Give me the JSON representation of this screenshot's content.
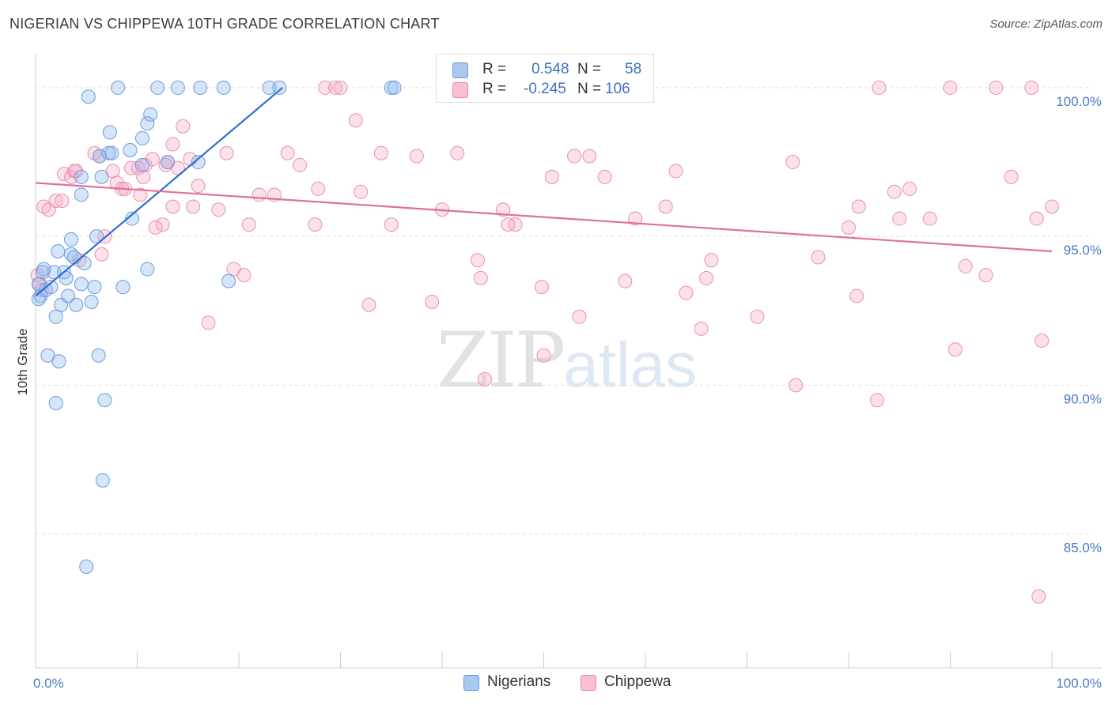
{
  "title": "NIGERIAN VS CHIPPEWA 10TH GRADE CORRELATION CHART",
  "source": "Source: ZipAtlas.com",
  "watermark": {
    "zip": "ZIP",
    "atlas": "atlas"
  },
  "legend_stats": [
    {
      "series": "Nigerians",
      "r_label": "R =",
      "r_value": "0.548",
      "n_label": "N =",
      "n_value": "58",
      "color": "#a8c8f0",
      "border": "#6a9be0"
    },
    {
      "series": "Chippewa",
      "r_label": "R =",
      "r_value": "-0.245",
      "n_label": "N =",
      "n_value": "106",
      "color": "#f8bfd0",
      "border": "#e88aa8"
    }
  ],
  "colors": {
    "nigerians_fill": "rgba(140,180,235,0.35)",
    "nigerians_stroke": "#6a9be0",
    "nigerians_line": "#2f6fd0",
    "chippewa_fill": "rgba(245,170,195,0.35)",
    "chippewa_stroke": "#e890ae",
    "chippewa_line": "#e0709a",
    "grid": "#dddddd",
    "tick_text": "#4a7bc8"
  },
  "chart_data": {
    "type": "scatter",
    "title": "NIGERIAN VS CHIPPEWA 10TH GRADE CORRELATION CHART",
    "xlabel": "",
    "ylabel": "10th Grade",
    "xlim": [
      0,
      100
    ],
    "ylim": [
      80.5,
      101.3
    ],
    "x_tick_labels": {
      "left": "0.0%",
      "right": "100.0%"
    },
    "y_ticks": [
      {
        "value": 100,
        "label": "100.0%"
      },
      {
        "value": 95,
        "label": "95.0%"
      },
      {
        "value": 90,
        "label": "90.0%"
      },
      {
        "value": 85,
        "label": "85.0%"
      }
    ],
    "grid": true,
    "legend": [
      "Nigerians",
      "Chippewa"
    ],
    "series": [
      {
        "name": "Nigerians",
        "trend": {
          "x": [
            0,
            24.3
          ],
          "y": [
            93.0,
            100.0
          ]
        },
        "points": [
          [
            0.3,
            93.4
          ],
          [
            0.5,
            93.0
          ],
          [
            0.7,
            93.8
          ],
          [
            0.3,
            92.9
          ],
          [
            1.0,
            93.2
          ],
          [
            1.5,
            93.3
          ],
          [
            1.2,
            91.0
          ],
          [
            2.0,
            92.3
          ],
          [
            2.5,
            92.7
          ],
          [
            3.0,
            93.6
          ],
          [
            3.2,
            93.0
          ],
          [
            4.0,
            92.7
          ],
          [
            4.5,
            93.4
          ],
          [
            5.5,
            92.8
          ],
          [
            5.8,
            93.3
          ],
          [
            4.8,
            94.1
          ],
          [
            3.5,
            94.4
          ],
          [
            2.2,
            94.5
          ],
          [
            3.5,
            94.9
          ],
          [
            6.0,
            95.0
          ],
          [
            1.8,
            93.8
          ],
          [
            2.8,
            93.8
          ],
          [
            3.8,
            94.3
          ],
          [
            2.3,
            90.8
          ],
          [
            2.0,
            89.4
          ],
          [
            6.2,
            91.0
          ],
          [
            6.8,
            89.5
          ],
          [
            6.6,
            86.8
          ],
          [
            5.0,
            83.9
          ],
          [
            4.5,
            97.0
          ],
          [
            6.5,
            97.0
          ],
          [
            4.5,
            96.4
          ],
          [
            6.3,
            97.7
          ],
          [
            7.2,
            97.8
          ],
          [
            7.5,
            97.8
          ],
          [
            7.3,
            98.5
          ],
          [
            9.3,
            97.9
          ],
          [
            10.5,
            97.4
          ],
          [
            9.5,
            95.6
          ],
          [
            13.0,
            97.5
          ],
          [
            16.0,
            97.5
          ],
          [
            8.6,
            93.3
          ],
          [
            11.0,
            93.9
          ],
          [
            19.0,
            93.5
          ],
          [
            5.2,
            99.7
          ],
          [
            8.1,
            100.0
          ],
          [
            12.0,
            100.0
          ],
          [
            14.0,
            100.0
          ],
          [
            16.2,
            100.0
          ],
          [
            18.5,
            100.0
          ],
          [
            23.0,
            100.0
          ],
          [
            24.0,
            100.0
          ],
          [
            35.0,
            100.0
          ],
          [
            35.3,
            100.0
          ],
          [
            11.0,
            98.8
          ],
          [
            11.3,
            99.1
          ],
          [
            10.5,
            98.3
          ],
          [
            0.8,
            93.9
          ]
        ]
      },
      {
        "name": "Chippewa",
        "trend": {
          "x": [
            0,
            100
          ],
          "y": [
            96.8,
            94.5
          ]
        },
        "points": [
          [
            0.2,
            93.7
          ],
          [
            0.4,
            93.4
          ],
          [
            0.6,
            93.2
          ],
          [
            0.8,
            96.0
          ],
          [
            1.3,
            95.9
          ],
          [
            2.0,
            96.2
          ],
          [
            2.6,
            96.2
          ],
          [
            2.8,
            97.1
          ],
          [
            3.5,
            97.0
          ],
          [
            3.8,
            97.2
          ],
          [
            4.0,
            97.2
          ],
          [
            4.3,
            94.2
          ],
          [
            5.8,
            97.8
          ],
          [
            6.3,
            97.7
          ],
          [
            6.5,
            94.4
          ],
          [
            6.8,
            95.0
          ],
          [
            7.6,
            97.2
          ],
          [
            8.0,
            96.8
          ],
          [
            8.5,
            96.6
          ],
          [
            8.8,
            96.6
          ],
          [
            9.4,
            97.3
          ],
          [
            10.1,
            97.3
          ],
          [
            10.3,
            96.4
          ],
          [
            10.6,
            97.0
          ],
          [
            10.8,
            97.4
          ],
          [
            11.5,
            97.6
          ],
          [
            12.5,
            95.4
          ],
          [
            12.8,
            97.4
          ],
          [
            13.0,
            97.5
          ],
          [
            13.5,
            98.1
          ],
          [
            14.0,
            97.3
          ],
          [
            14.5,
            98.7
          ],
          [
            15.2,
            97.6
          ],
          [
            15.5,
            96.0
          ],
          [
            16.0,
            96.7
          ],
          [
            17.0,
            92.1
          ],
          [
            18.0,
            95.9
          ],
          [
            18.8,
            97.8
          ],
          [
            19.5,
            93.9
          ],
          [
            20.5,
            93.7
          ],
          [
            21.0,
            95.4
          ],
          [
            22.0,
            96.4
          ],
          [
            23.5,
            96.4
          ],
          [
            24.8,
            97.8
          ],
          [
            26.0,
            97.4
          ],
          [
            27.5,
            95.4
          ],
          [
            27.8,
            96.6
          ],
          [
            28.5,
            100.0
          ],
          [
            29.5,
            100.0
          ],
          [
            30.0,
            100.0
          ],
          [
            31.5,
            98.9
          ],
          [
            32.0,
            96.5
          ],
          [
            32.8,
            92.7
          ],
          [
            34.0,
            97.8
          ],
          [
            35.0,
            95.4
          ],
          [
            37.5,
            97.7
          ],
          [
            39.0,
            92.8
          ],
          [
            40.0,
            95.9
          ],
          [
            41.5,
            97.8
          ],
          [
            43.5,
            94.2
          ],
          [
            43.8,
            93.6
          ],
          [
            44.2,
            90.2
          ],
          [
            46.0,
            95.9
          ],
          [
            46.5,
            95.4
          ],
          [
            47.2,
            95.4
          ],
          [
            49.8,
            93.3
          ],
          [
            50.0,
            91.0
          ],
          [
            50.8,
            97.0
          ],
          [
            53.0,
            97.7
          ],
          [
            53.5,
            92.3
          ],
          [
            54.5,
            97.7
          ],
          [
            56.0,
            97.0
          ],
          [
            58.0,
            93.5
          ],
          [
            59.0,
            95.6
          ],
          [
            62.0,
            96.0
          ],
          [
            63.0,
            97.2
          ],
          [
            64.0,
            93.1
          ],
          [
            65.5,
            91.9
          ],
          [
            66.0,
            93.6
          ],
          [
            66.5,
            94.2
          ],
          [
            71.0,
            92.3
          ],
          [
            74.5,
            97.5
          ],
          [
            74.8,
            90.0
          ],
          [
            77.0,
            94.3
          ],
          [
            80.0,
            95.3
          ],
          [
            80.8,
            93.0
          ],
          [
            81.0,
            96.0
          ],
          [
            82.8,
            89.5
          ],
          [
            83.0,
            100.0
          ],
          [
            84.5,
            96.5
          ],
          [
            85.0,
            95.6
          ],
          [
            86.0,
            96.6
          ],
          [
            88.0,
            95.6
          ],
          [
            90.0,
            100.0
          ],
          [
            90.5,
            91.2
          ],
          [
            91.5,
            94.0
          ],
          [
            93.5,
            93.7
          ],
          [
            94.5,
            100.0
          ],
          [
            96.0,
            97.0
          ],
          [
            98.0,
            100.0
          ],
          [
            98.5,
            95.6
          ],
          [
            99.0,
            91.5
          ],
          [
            100.0,
            96.0
          ],
          [
            98.7,
            82.9
          ],
          [
            11.8,
            95.3
          ],
          [
            13.5,
            96.0
          ]
        ]
      }
    ]
  }
}
